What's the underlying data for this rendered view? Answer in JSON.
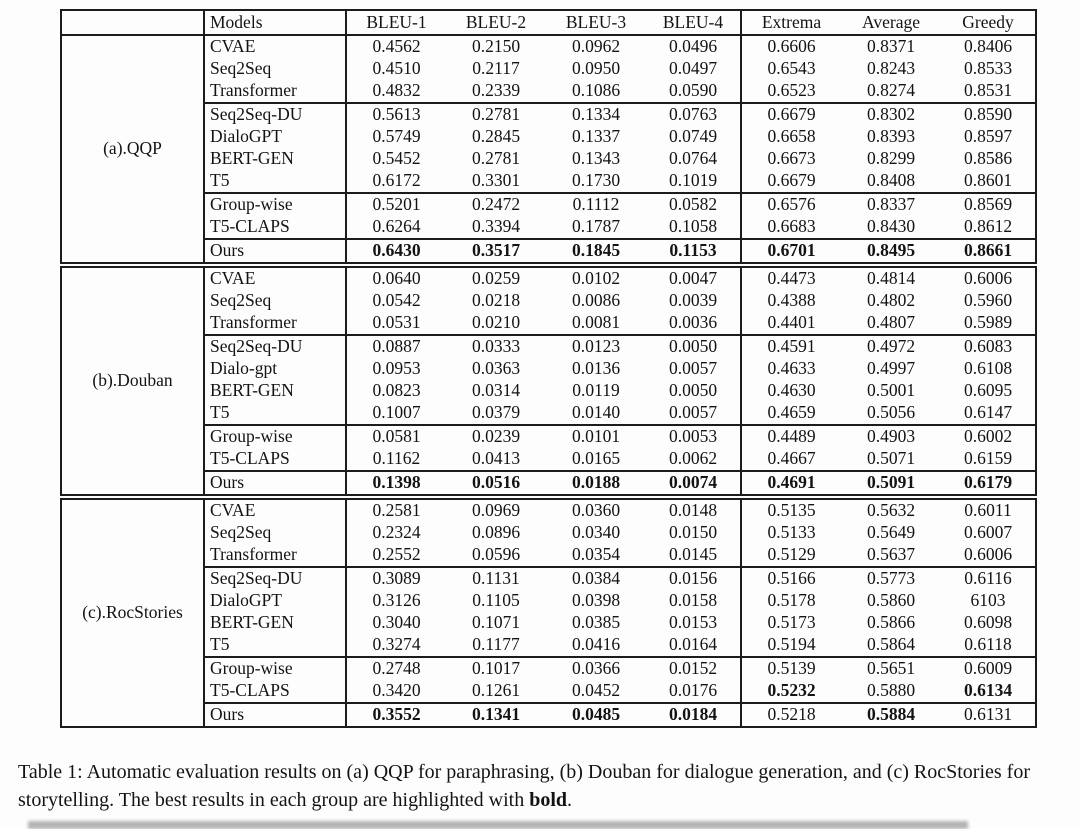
{
  "table": {
    "columns": [
      "Models",
      "BLEU-1",
      "BLEU-2",
      "BLEU-3",
      "BLEU-4",
      "Extrema",
      "Average",
      "Greedy"
    ],
    "groups": [
      {
        "label": "(a).QQP",
        "separator_above": false,
        "rows": [
          {
            "model": "CVAE",
            "values": [
              "0.4562",
              "0.2150",
              "0.0962",
              "0.0496",
              "0.6606",
              "0.8371",
              "0.8406"
            ]
          },
          {
            "model": "Seq2Seq",
            "values": [
              "0.4510",
              "0.2117",
              "0.0950",
              "0.0497",
              "0.6543",
              "0.8243",
              "0.8533"
            ]
          },
          {
            "model": "Transformer",
            "values": [
              "0.4832",
              "0.2339",
              "0.1086",
              "0.0590",
              "0.6523",
              "0.8274",
              "0.8531"
            ]
          },
          {
            "model": "Seq2Seq-DU",
            "cline": true,
            "values": [
              "0.5613",
              "0.2781",
              "0.1334",
              "0.0763",
              "0.6679",
              "0.8302",
              "0.8590"
            ]
          },
          {
            "model": "DialoGPT",
            "values": [
              "0.5749",
              "0.2845",
              "0.1337",
              "0.0749",
              "0.6658",
              "0.8393",
              "0.8597"
            ]
          },
          {
            "model": "BERT-GEN",
            "values": [
              "0.5452",
              "0.2781",
              "0.1343",
              "0.0764",
              "0.6673",
              "0.8299",
              "0.8586"
            ]
          },
          {
            "model": "T5",
            "values": [
              "0.6172",
              "0.3301",
              "0.1730",
              "0.1019",
              "0.6679",
              "0.8408",
              "0.8601"
            ]
          },
          {
            "model": "Group-wise",
            "cline": true,
            "values": [
              "0.5201",
              "0.2472",
              "0.1112",
              "0.0582",
              "0.6576",
              "0.8337",
              "0.8569"
            ]
          },
          {
            "model": "T5-CLAPS",
            "values": [
              "0.6264",
              "0.3394",
              "0.1787",
              "0.1058",
              "0.6683",
              "0.8430",
              "0.8612"
            ]
          },
          {
            "model": "Ours",
            "cline": true,
            "values": [
              "0.6430",
              "0.3517",
              "0.1845",
              "0.1153",
              "0.6701",
              "0.8495",
              "0.8661"
            ],
            "bold": [
              true,
              true,
              true,
              true,
              true,
              true,
              true
            ]
          }
        ]
      },
      {
        "label": "(b).Douban",
        "separator_above": true,
        "rows": [
          {
            "model": "CVAE",
            "values": [
              "0.0640",
              "0.0259",
              "0.0102",
              "0.0047",
              "0.4473",
              "0.4814",
              "0.6006"
            ]
          },
          {
            "model": "Seq2Seq",
            "values": [
              "0.0542",
              "0.0218",
              "0.0086",
              "0.0039",
              "0.4388",
              "0.4802",
              "0.5960"
            ]
          },
          {
            "model": "Transformer",
            "values": [
              "0.0531",
              "0.0210",
              "0.0081",
              "0.0036",
              "0.4401",
              "0.4807",
              "0.5989"
            ]
          },
          {
            "model": "Seq2Seq-DU",
            "cline": true,
            "values": [
              "0.0887",
              "0.0333",
              "0.0123",
              "0.0050",
              "0.4591",
              "0.4972",
              "0.6083"
            ]
          },
          {
            "model": "Dialo-gpt",
            "values": [
              "0.0953",
              "0.0363",
              "0.0136",
              "0.0057",
              "0.4633",
              "0.4997",
              "0.6108"
            ]
          },
          {
            "model": "BERT-GEN",
            "values": [
              "0.0823",
              "0.0314",
              "0.0119",
              "0.0050",
              "0.4630",
              "0.5001",
              "0.6095"
            ]
          },
          {
            "model": "T5",
            "values": [
              "0.1007",
              "0.0379",
              "0.0140",
              "0.0057",
              "0.4659",
              "0.5056",
              "0.6147"
            ]
          },
          {
            "model": "Group-wise",
            "cline": true,
            "values": [
              "0.0581",
              "0.0239",
              "0.0101",
              "0.0053",
              "0.4489",
              "0.4903",
              "0.6002"
            ]
          },
          {
            "model": "T5-CLAPS",
            "values": [
              "0.1162",
              "0.0413",
              "0.0165",
              "0.0062",
              "0.4667",
              "0.5071",
              "0.6159"
            ]
          },
          {
            "model": "Ours",
            "cline": true,
            "values": [
              "0.1398",
              "0.0516",
              "0.0188",
              "0.0074",
              "0.4691",
              "0.5091",
              "0.6179"
            ],
            "bold": [
              true,
              true,
              true,
              true,
              true,
              true,
              true
            ]
          }
        ]
      },
      {
        "label": "(c).RocStories",
        "separator_above": true,
        "rows": [
          {
            "model": "CVAE",
            "values": [
              "0.2581",
              "0.0969",
              "0.0360",
              "0.0148",
              "0.5135",
              "0.5632",
              "0.6011"
            ]
          },
          {
            "model": "Seq2Seq",
            "values": [
              "0.2324",
              "0.0896",
              "0.0340",
              "0.0150",
              "0.5133",
              "0.5649",
              "0.6007"
            ]
          },
          {
            "model": "Transformer",
            "values": [
              "0.2552",
              "0.0596",
              "0.0354",
              "0.0145",
              "0.5129",
              "0.5637",
              "0.6006"
            ]
          },
          {
            "model": "Seq2Seq-DU",
            "cline": true,
            "values": [
              "0.3089",
              "0.1131",
              "0.0384",
              "0.0156",
              "0.5166",
              "0.5773",
              "0.6116"
            ]
          },
          {
            "model": "DialoGPT",
            "values": [
              "0.3126",
              "0.1105",
              "0.0398",
              "0.0158",
              "0.5178",
              "0.5860",
              "6103"
            ]
          },
          {
            "model": "BERT-GEN",
            "values": [
              "0.3040",
              "0.1071",
              "0.0385",
              "0.0153",
              "0.5173",
              "0.5866",
              "0.6098"
            ]
          },
          {
            "model": "T5",
            "values": [
              "0.3274",
              "0.1177",
              "0.0416",
              "0.0164",
              "0.5194",
              "0.5864",
              "0.6118"
            ]
          },
          {
            "model": "Group-wise",
            "cline": true,
            "values": [
              "0.2748",
              "0.1017",
              "0.0366",
              "0.0152",
              "0.5139",
              "0.5651",
              "0.6009"
            ]
          },
          {
            "model": "T5-CLAPS",
            "values": [
              "0.3420",
              "0.1261",
              "0.0452",
              "0.0176",
              "0.5232",
              "0.5880",
              "0.6134"
            ],
            "bold": [
              false,
              false,
              false,
              false,
              true,
              false,
              true
            ]
          },
          {
            "model": "Ours",
            "cline": true,
            "values": [
              "0.3552",
              "0.1341",
              "0.0485",
              "0.0184",
              "0.5218",
              "0.5884",
              "0.6131"
            ],
            "bold": [
              true,
              true,
              true,
              true,
              false,
              true,
              false
            ]
          }
        ]
      }
    ]
  },
  "caption": {
    "text_before": "Table 1: Automatic evaluation results on (a) QQP for paraphrasing, (b) Douban for dialogue generation, and (c) RocStories for storytelling. The best results in each group are highlighted with ",
    "bold_word": "bold",
    "text_after": "."
  }
}
